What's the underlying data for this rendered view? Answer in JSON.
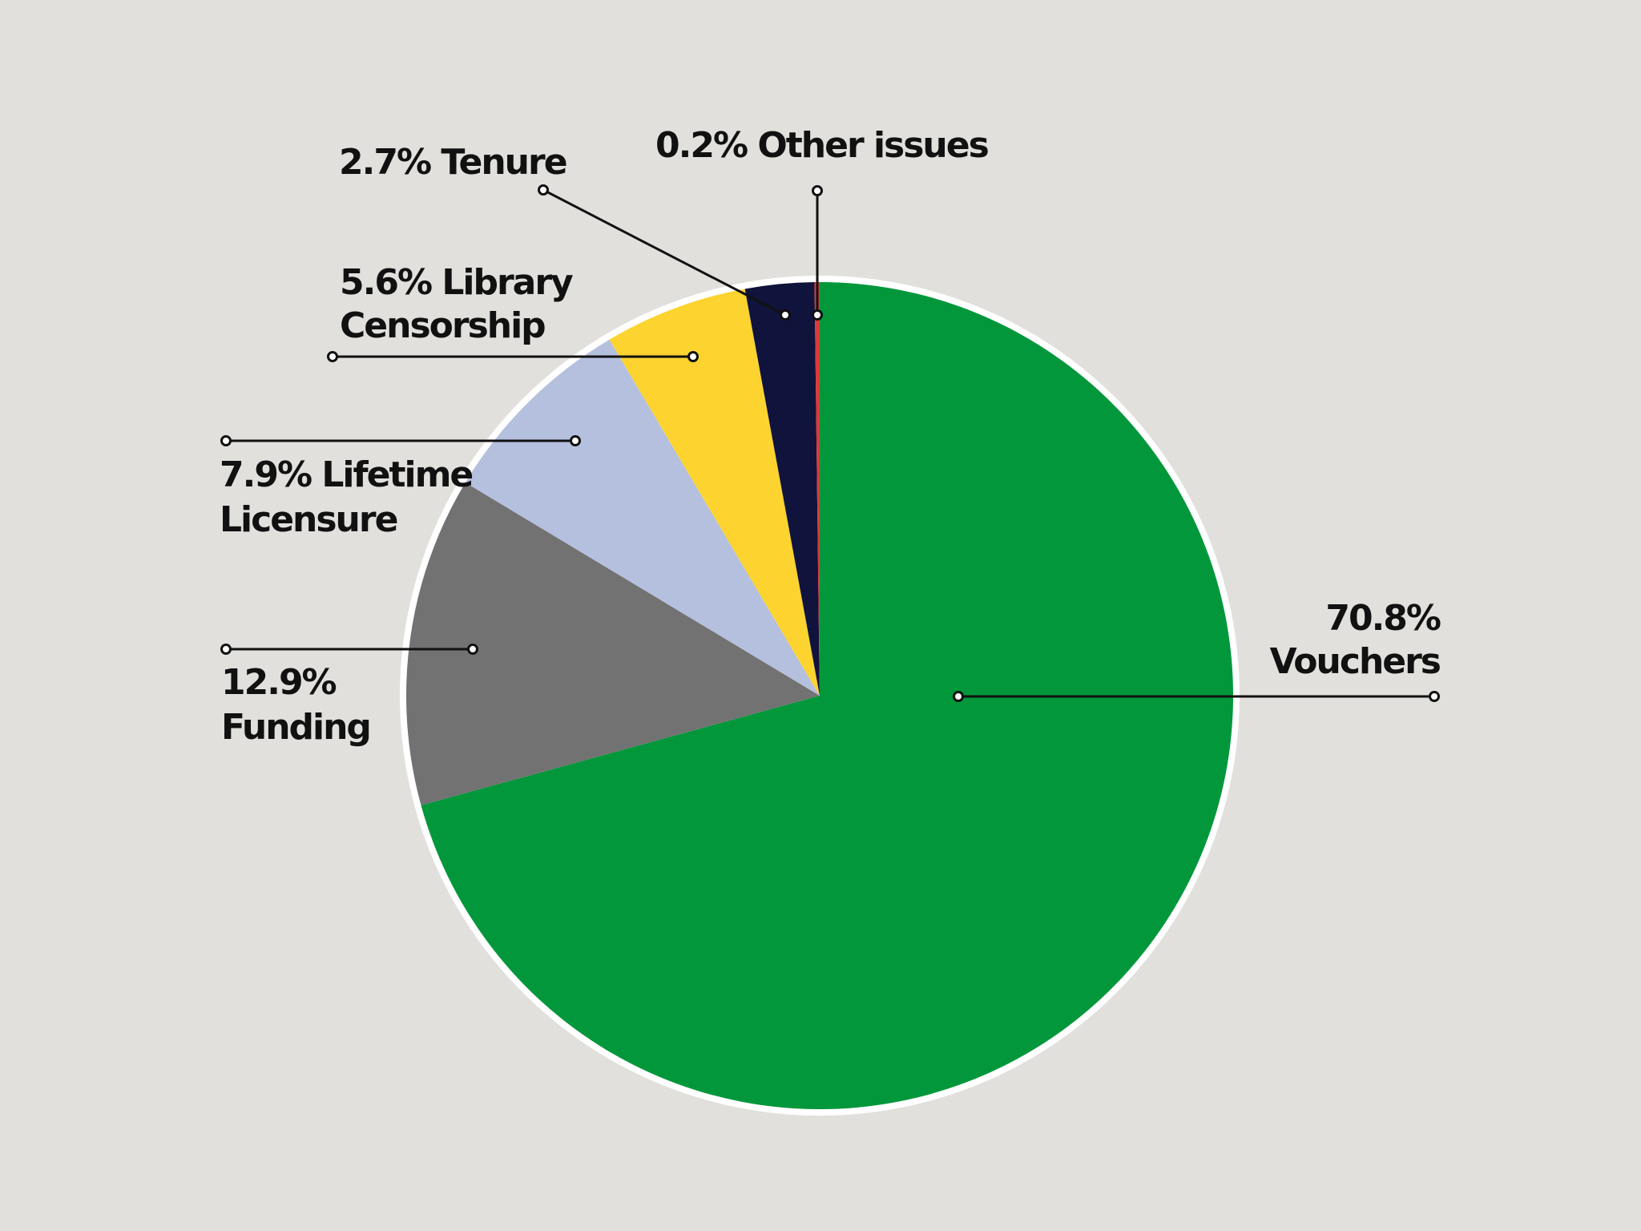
{
  "chart_data": {
    "type": "pie",
    "start_angle_deg": 0,
    "direction": "clockwise",
    "slices": [
      {
        "label": "Vouchers",
        "value": 70.8,
        "value_label": "70.8%",
        "label_lines": [
          "70.8%",
          "Vouchers"
        ],
        "color": "#02973b",
        "align": "right"
      },
      {
        "label": "Funding",
        "value": 12.9,
        "value_label": "12.9%",
        "label_lines": [
          "12.9%",
          "Funding"
        ],
        "color": "#727272",
        "align": "left"
      },
      {
        "label": "Lifetime Licensure",
        "value": 7.9,
        "value_label": "7.9%",
        "label_lines": [
          "7.9% Lifetime",
          "Licensure"
        ],
        "color": "#b5c0df",
        "align": "left"
      },
      {
        "label": "Library Censorship",
        "value": 5.6,
        "value_label": "5.6%",
        "label_lines": [
          "5.6% Library",
          "Censorship"
        ],
        "color": "#fcd32f",
        "align": "left"
      },
      {
        "label": "Tenure",
        "value": 2.7,
        "value_label": "2.7%",
        "label_lines": [
          "2.7% Tenure"
        ],
        "color": "#10133c",
        "align": "left"
      },
      {
        "label": "Other issues",
        "value": 0.2,
        "value_label": "0.2%",
        "label_lines": [
          "0.2% Other issues"
        ],
        "color": "#d93a3a",
        "align": "left"
      }
    ],
    "legend": "none",
    "background_color": "#e1e0dc",
    "outline_color": "#ffffff"
  }
}
